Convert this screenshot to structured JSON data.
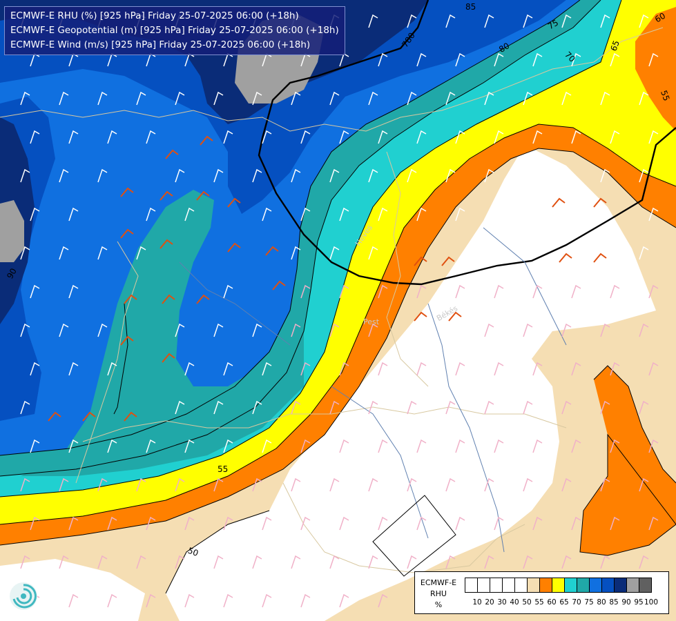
{
  "header": {
    "line1": "ECMWF-E RHU (%) [925 hPa] Friday 25-07-2025 06:00 (+18h)",
    "line2": "ECMWF-E Geopotential (m) [925 hPa] Friday 25-07-2025 06:00 (+18h)",
    "line3": "ECMWF-E Wind (m/s) [925 hPa] Friday 25-07-2025 06:00 (+18h)"
  },
  "legend": {
    "title_line1": "ECMWF-E",
    "title_line2": "RHU",
    "title_line3": "%",
    "levels": [
      "10",
      "20",
      "30",
      "40",
      "50",
      "55",
      "60",
      "65",
      "70",
      "75",
      "80",
      "85",
      "90",
      "95",
      "100"
    ],
    "colors": [
      "#ffffff",
      "#ffffff",
      "#ffffff",
      "#ffffff",
      "#ffffff",
      "#f5deb3",
      "#ff8000",
      "#ffff00",
      "#20d0d0",
      "#20a8a8",
      "#1070e0",
      "#0550c0",
      "#0a2c78",
      "#a0a0a0",
      "#606060"
    ]
  },
  "contour_labels": {
    "geo_780": "780",
    "rhu_85_top": "85",
    "rhu_80": "80",
    "rhu_75": "75",
    "rhu_70": "70",
    "rhu_65": "65",
    "rhu_60": "60",
    "rhu_55_right": "55",
    "rhu_55_bottom": "55",
    "rhu_50": "50",
    "rhu_90_left": "90"
  },
  "place_labels": {
    "heves": "Heves",
    "bekes": "Békés",
    "pest": "Pest"
  },
  "wind_barbs": {
    "count_orange": 27,
    "color_orange": "#e05010",
    "color_pink": "#f0b0c8",
    "color_white": "#ffffff"
  },
  "colors": {
    "deep_navy": "#0a2c78",
    "navy": "#0550c0",
    "blue": "#1070e0",
    "teal": "#20a8a8",
    "cyan": "#20d0d0",
    "yellow": "#ffff00",
    "orange": "#ff8000",
    "wheat": "#f5deb3",
    "gray": "#a0a0a0"
  }
}
